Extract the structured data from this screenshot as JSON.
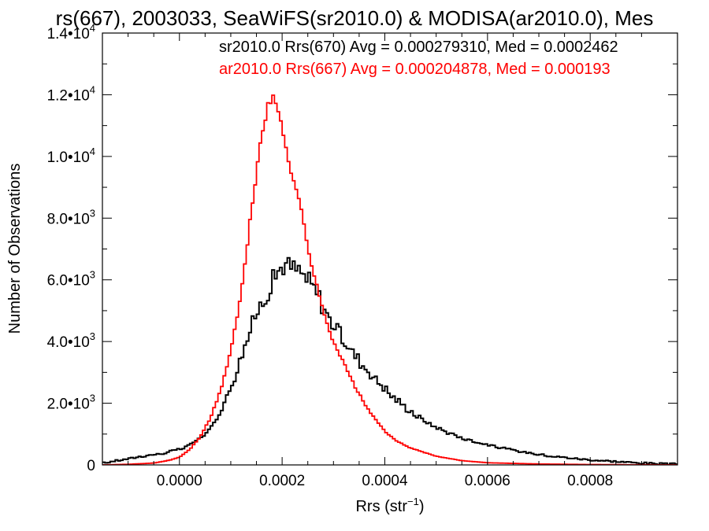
{
  "chart_data": {
    "type": "line",
    "title": "rs(667), 2003033, SeaWiFS(sr2010.0) & MODISA(ar2010.0), Mes",
    "xlabel": {
      "text": "Rrs (str",
      "sup": "−1",
      "tail": ")"
    },
    "ylabel": "Number of Observations",
    "xlim": [
      -0.00015,
      0.00097
    ],
    "ylim": [
      0,
      14000
    ],
    "grid": false,
    "legend_position": "top-right",
    "x_ticks": [
      {
        "value": 0.0,
        "label": "0.0000"
      },
      {
        "value": 0.0002,
        "label": "0.0002"
      },
      {
        "value": 0.0004,
        "label": "0.0004"
      },
      {
        "value": 0.0006,
        "label": "0.0006"
      },
      {
        "value": 0.0008,
        "label": "0.0008"
      }
    ],
    "y_ticks": [
      {
        "value": 0,
        "mant": "0",
        "exp": ""
      },
      {
        "value": 2000,
        "mant": "2.0•10",
        "exp": "3"
      },
      {
        "value": 4000,
        "mant": "4.0•10",
        "exp": "3"
      },
      {
        "value": 6000,
        "mant": "6.0•10",
        "exp": "3"
      },
      {
        "value": 8000,
        "mant": "8.0•10",
        "exp": "3"
      },
      {
        "value": 10000,
        "mant": "1.0•10",
        "exp": "4"
      },
      {
        "value": 12000,
        "mant": "1.2•10",
        "exp": "4"
      },
      {
        "value": 14000,
        "mant": "1.4•10",
        "exp": "4"
      }
    ],
    "series": [
      {
        "name": "sr2010.0 Rrs(670)",
        "legend_text": "sr2010.0 Rrs(670) Avg = 0.000279310, Med = 0.0002462",
        "color": "#000000",
        "bin_width": 5e-06,
        "x": [
          -0.00015,
          -0.00013,
          -0.00011,
          -9e-05,
          -7e-05,
          -5e-05,
          -3e-05,
          -1e-05,
          1e-05,
          3e-05,
          5e-05,
          7e-05,
          9e-05,
          0.00011,
          0.00013,
          0.00015,
          0.00017,
          0.00019,
          0.0002,
          0.00021,
          0.00023,
          0.00025,
          0.00027,
          0.00029,
          0.00031,
          0.00033,
          0.00035,
          0.00037,
          0.00039,
          0.00041,
          0.00043,
          0.00045,
          0.00047,
          0.00049,
          0.00051,
          0.00053,
          0.00055,
          0.00057,
          0.00059,
          0.00061,
          0.00063,
          0.00065,
          0.00067,
          0.00069,
          0.00071,
          0.00073,
          0.00075,
          0.00077,
          0.00079,
          0.00081,
          0.00083,
          0.00085,
          0.00087,
          0.00089,
          0.00091,
          0.00093,
          0.00095,
          0.00097
        ],
        "y": [
          50,
          120,
          170,
          230,
          290,
          330,
          380,
          460,
          560,
          760,
          980,
          1400,
          2100,
          3000,
          4000,
          4900,
          5600,
          6200,
          6500,
          6450,
          6300,
          6000,
          5500,
          4800,
          4300,
          3800,
          3400,
          3000,
          2650,
          2300,
          2000,
          1750,
          1500,
          1300,
          1150,
          1000,
          880,
          780,
          700,
          620,
          540,
          470,
          420,
          370,
          320,
          280,
          240,
          210,
          180,
          150,
          130,
          110,
          90,
          70,
          55,
          40,
          30,
          25
        ]
      },
      {
        "name": "ar2010.0 Rrs(667)",
        "legend_text": "ar2010.0 Rrs(667) Avg = 0.000204878, Med = 0.000193",
        "color": "#ff0000",
        "bin_width": 5e-06,
        "x": [
          -0.00015,
          -0.0001,
          -5e-05,
          -2e-05,
          0.0,
          2e-05,
          4e-05,
          6e-05,
          8e-05,
          0.0001,
          0.00012,
          0.00013,
          0.00014,
          0.00015,
          0.00016,
          0.00017,
          0.00018,
          0.00019,
          0.0002,
          0.00021,
          0.00022,
          0.00023,
          0.00024,
          0.00025,
          0.00026,
          0.00027,
          0.00028,
          0.0003,
          0.00032,
          0.00034,
          0.00036,
          0.00038,
          0.0004,
          0.00042,
          0.00045,
          0.0005,
          0.00055,
          0.0006,
          0.0007,
          0.0008,
          0.0009,
          0.00097
        ],
        "y": [
          0,
          20,
          60,
          150,
          250,
          500,
          900,
          1500,
          2400,
          3700,
          5500,
          6800,
          8200,
          9500,
          10700,
          11500,
          11900,
          11600,
          11000,
          10100,
          9400,
          8800,
          8000,
          7100,
          6300,
          5600,
          5000,
          4000,
          3300,
          2600,
          2000,
          1500,
          1100,
          800,
          550,
          280,
          140,
          70,
          30,
          12,
          5,
          3
        ]
      }
    ]
  }
}
